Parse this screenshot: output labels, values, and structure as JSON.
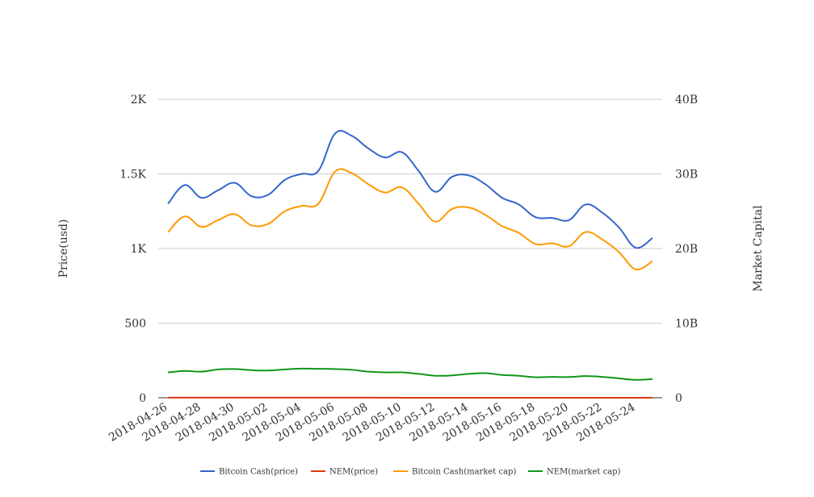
{
  "chart_data": {
    "type": "line",
    "smooth": true,
    "x": [
      "2018-04-26",
      "2018-04-27",
      "2018-04-28",
      "2018-04-29",
      "2018-04-30",
      "2018-05-01",
      "2018-05-02",
      "2018-05-03",
      "2018-05-04",
      "2018-05-05",
      "2018-05-06",
      "2018-05-07",
      "2018-05-08",
      "2018-05-09",
      "2018-05-10",
      "2018-05-11",
      "2018-05-12",
      "2018-05-13",
      "2018-05-14",
      "2018-05-15",
      "2018-05-16",
      "2018-05-17",
      "2018-05-18",
      "2018-05-19",
      "2018-05-20",
      "2018-05-21",
      "2018-05-22",
      "2018-05-23",
      "2018-05-24",
      "2018-05-25"
    ],
    "x_tick_labels": [
      "2018-04-26",
      "2018-04-28",
      "2018-04-30",
      "2018-05-02",
      "2018-05-04",
      "2018-05-06",
      "2018-05-08",
      "2018-05-10",
      "2018-05-12",
      "2018-05-14",
      "2018-05-16",
      "2018-05-18",
      "2018-05-20",
      "2018-05-22",
      "2018-05-24"
    ],
    "y_left": {
      "label": "Price(usd)",
      "ylim": [
        0,
        2000
      ],
      "ticks": [
        0,
        500,
        1000,
        1500,
        2000
      ],
      "tick_labels": [
        "0",
        "500",
        "1K",
        "1.5K",
        "2K"
      ]
    },
    "y_right": {
      "label": "Market Capital",
      "ylim": [
        0,
        40000000000
      ],
      "ticks": [
        0,
        10000000000,
        20000000000,
        30000000000,
        40000000000
      ],
      "tick_labels": [
        "0",
        "10B",
        "20B",
        "30B",
        "40B"
      ]
    },
    "grid": true,
    "legend_position": "bottom",
    "series": [
      {
        "name": "Bitcoin Cash(price)",
        "axis": "left",
        "color": "#3366cc",
        "values": [
          1300,
          1425,
          1340,
          1390,
          1440,
          1350,
          1360,
          1460,
          1500,
          1520,
          1770,
          1755,
          1670,
          1610,
          1645,
          1520,
          1380,
          1480,
          1490,
          1430,
          1340,
          1295,
          1210,
          1205,
          1190,
          1295,
          1240,
          1140,
          1005,
          1070
        ]
      },
      {
        "name": "NEM(price)",
        "axis": "left",
        "color": "#dc3912",
        "values": [
          0.37,
          0.38,
          0.37,
          0.38,
          0.38,
          0.37,
          0.37,
          0.38,
          0.38,
          0.38,
          0.38,
          0.37,
          0.36,
          0.35,
          0.35,
          0.34,
          0.32,
          0.32,
          0.33,
          0.34,
          0.32,
          0.31,
          0.29,
          0.29,
          0.29,
          0.3,
          0.29,
          0.27,
          0.25,
          0.26
        ]
      },
      {
        "name": "Bitcoin Cash(market cap)",
        "axis": "right",
        "color": "#ff9900",
        "values": [
          22200000000,
          24300000000,
          22900000000,
          23800000000,
          24600000000,
          23100000000,
          23300000000,
          25000000000,
          25700000000,
          26000000000,
          30300000000,
          30100000000,
          28600000000,
          27500000000,
          28200000000,
          26000000000,
          23600000000,
          25300000000,
          25500000000,
          24500000000,
          23000000000,
          22100000000,
          20600000000,
          20700000000,
          20300000000,
          22200000000,
          21200000000,
          19500000000,
          17200000000,
          18300000000
        ]
      },
      {
        "name": "NEM(market cap)",
        "axis": "right",
        "color": "#109618",
        "values": [
          3400000000,
          3600000000,
          3500000000,
          3800000000,
          3850000000,
          3700000000,
          3650000000,
          3800000000,
          3900000000,
          3880000000,
          3850000000,
          3750000000,
          3500000000,
          3400000000,
          3400000000,
          3200000000,
          2950000000,
          3000000000,
          3200000000,
          3300000000,
          3050000000,
          2950000000,
          2750000000,
          2800000000,
          2780000000,
          2900000000,
          2800000000,
          2600000000,
          2400000000,
          2500000000
        ]
      }
    ]
  }
}
